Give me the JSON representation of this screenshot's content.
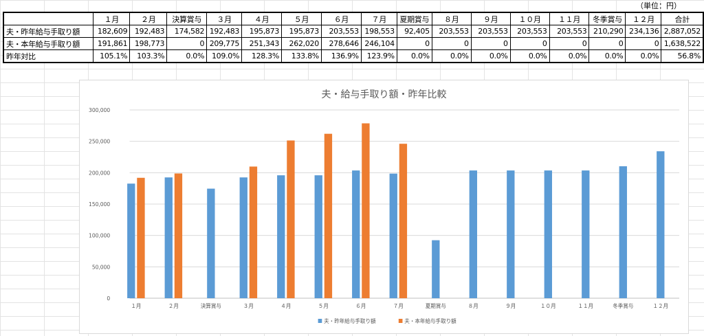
{
  "sheet": {
    "unit_label": "（単位：円）"
  },
  "table": {
    "headers": [
      "",
      "１月",
      "２月",
      "決算賞与",
      "３月",
      "４月",
      "５月",
      "６月",
      "７月",
      "夏期賞与",
      "８月",
      "９月",
      "１０月",
      "１１月",
      "冬季賞与",
      "１２月",
      "合計"
    ],
    "rows": [
      {
        "label": "夫・昨年給与手取り額",
        "cells": [
          "182,609",
          "192,483",
          "174,582",
          "192,483",
          "195,873",
          "195,873",
          "203,553",
          "198,553",
          "92,405",
          "203,553",
          "203,553",
          "203,553",
          "203,553",
          "210,290",
          "234,136",
          "2,887,052"
        ]
      },
      {
        "label": "夫・本年給与手取り額",
        "cells": [
          "191,861",
          "198,773",
          "0",
          "209,775",
          "251,343",
          "262,020",
          "278,646",
          "246,104",
          "0",
          "0",
          "0",
          "0",
          "0",
          "0",
          "0",
          "1,638,522"
        ]
      },
      {
        "label": "昨年対比",
        "cells": [
          "105.1%",
          "103.3%",
          "0.0%",
          "109.0%",
          "128.3%",
          "133.8%",
          "136.9%",
          "123.9%",
          "0.0%",
          "0.0%",
          "0.0%",
          "0.0%",
          "0.0%",
          "0.0%",
          "0.0%",
          "56.8%"
        ]
      }
    ]
  },
  "chart_data": {
    "type": "bar",
    "title": "夫・給与手取り額・昨年比較",
    "categories": [
      "１月",
      "２月",
      "決算賞与",
      "３月",
      "４月",
      "５月",
      "６月",
      "７月",
      "夏期賞与",
      "８月",
      "９月",
      "１０月",
      "１１月",
      "冬季賞与",
      "１２月"
    ],
    "series": [
      {
        "name": "夫・昨年給与手取り額",
        "color": "#5b9bd5",
        "values": [
          182609,
          192483,
          174582,
          192483,
          195873,
          195873,
          203553,
          198553,
          92405,
          203553,
          203553,
          203553,
          203553,
          210290,
          234136
        ]
      },
      {
        "name": "夫・本年給与手取り額",
        "color": "#ed7d31",
        "values": [
          191861,
          198773,
          0,
          209775,
          251343,
          262020,
          278646,
          246104,
          0,
          0,
          0,
          0,
          0,
          0,
          0
        ]
      }
    ],
    "ylim": [
      0,
      300000
    ],
    "yticks": [
      "0",
      "50,000",
      "100,000",
      "150,000",
      "200,000",
      "250,000",
      "300,000"
    ],
    "grid": true,
    "legend_position": "bottom"
  }
}
